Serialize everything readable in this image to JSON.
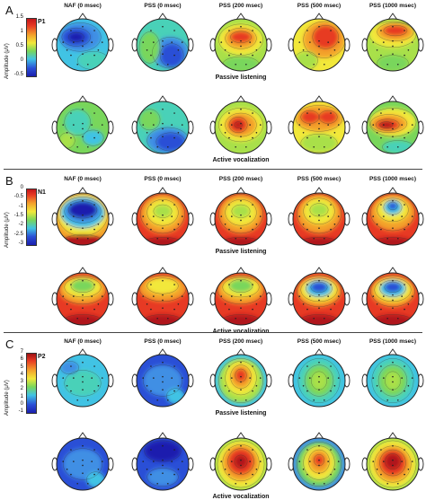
{
  "panels": [
    {
      "letter": "A",
      "component": "P1",
      "ylabel": "Amplitude (μV)",
      "ticks": [
        "1.5",
        "1",
        "0.5",
        "0",
        "-0.5"
      ],
      "headers": [
        "NAF (0 msec)",
        "PSS (0 msec)",
        "PSS (200 msec)",
        "PSS (500 msec)",
        "PSS (1000 msec)"
      ],
      "row_labels": [
        "Passive listening",
        "Active vocalization"
      ],
      "maps": [
        [
          "blue-center",
          "blue-right",
          "red-front",
          "red-front-right",
          "red-front-2"
        ],
        [
          "green-mix",
          "blue-right-low",
          "red-mid",
          "red-front-split",
          "red-left-band"
        ]
      ]
    },
    {
      "letter": "B",
      "component": "N1",
      "ylabel": "Amplitude (μV)",
      "ticks": [
        "0",
        "-0.5",
        "-1",
        "-1.5",
        "-2",
        "-2.5",
        "-3"
      ],
      "headers": [
        "NAF (0 msec)",
        "PSS (0 msec)",
        "PSS (200 msec)",
        "PSS (500 msec)",
        "PSS (1000 msec)"
      ],
      "row_labels": [
        "Passive listening",
        "Active vocalization"
      ],
      "maps": [
        [
          "deep-blue-top",
          "orange-ring",
          "orange-ring",
          "yellow-ring",
          "blue-top-small"
        ],
        [
          "green-top",
          "yellow-top",
          "green-top",
          "blue-top-mid",
          "blue-top-mid"
        ]
      ]
    },
    {
      "letter": "C",
      "component": "P2",
      "ylabel": "Amplitude (μV)",
      "ticks": [
        "7",
        "6",
        "5",
        "4",
        "3",
        "2",
        "1",
        "0",
        "-1"
      ],
      "headers": [
        "NAF (0 msec)",
        "PSS (0 msec)",
        "PSS (200 msec)",
        "PSS (500 msec)",
        "PSS (1000 msec)"
      ],
      "row_labels": [
        "Passive listening",
        "Active vocalization"
      ],
      "maps": [
        [
          "cyan-plain",
          "blue-plain",
          "red-center",
          "green-center",
          "green-center"
        ],
        [
          "blue-plain",
          "deep-blue-plain",
          "red-center-big",
          "red-center-small",
          "red-center-dark"
        ]
      ]
    }
  ]
}
